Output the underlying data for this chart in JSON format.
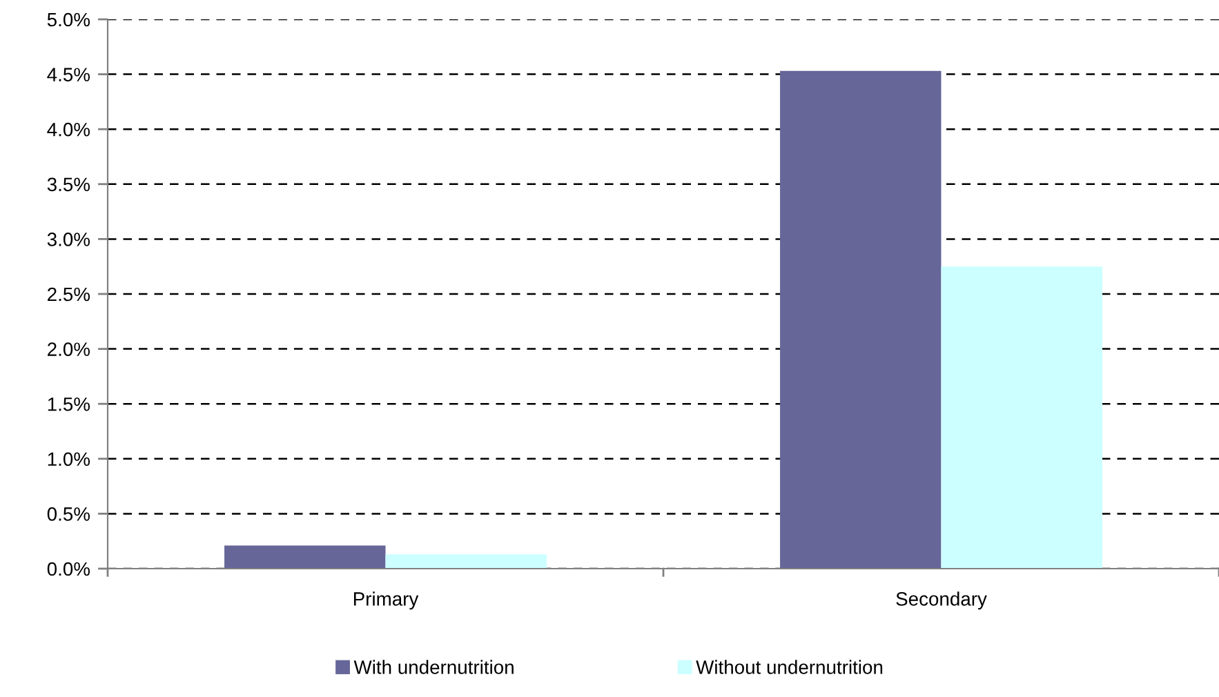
{
  "chart_data": {
    "type": "bar",
    "categories": [
      "Primary",
      "Secondary"
    ],
    "series": [
      {
        "name": "With undernutrition",
        "color": "#666699",
        "values": [
          0.21,
          4.53
        ]
      },
      {
        "name": "Without undernutrition",
        "color": "#ccffff",
        "values": [
          0.13,
          2.75
        ]
      }
    ],
    "ylim": [
      0,
      5
    ],
    "yticks": [
      {
        "value": 0,
        "label": "0.0%"
      },
      {
        "value": 0.5,
        "label": "0.5%"
      },
      {
        "value": 1,
        "label": "1.0%"
      },
      {
        "value": 1.5,
        "label": "1.5%"
      },
      {
        "value": 2,
        "label": "2.0%"
      },
      {
        "value": 2.5,
        "label": "2.5%"
      },
      {
        "value": 3,
        "label": "3.0%"
      },
      {
        "value": 3.5,
        "label": "3.5%"
      },
      {
        "value": 4,
        "label": "4.0%"
      },
      {
        "value": 4.5,
        "label": "4.5%"
      },
      {
        "value": 5,
        "label": "5.0%"
      }
    ],
    "grid": "y",
    "legend": "bottom"
  }
}
